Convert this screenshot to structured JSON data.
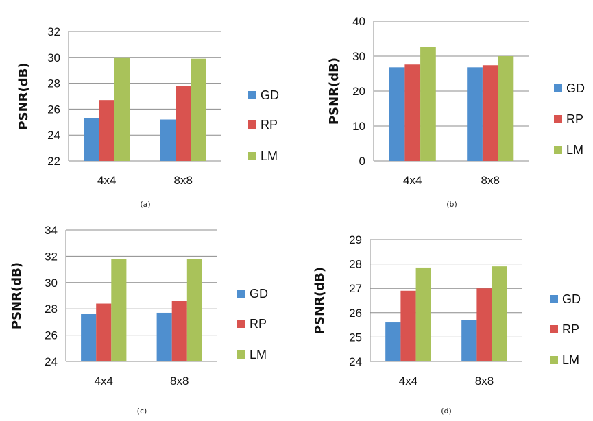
{
  "colors": {
    "GD": "#4f8fcf",
    "RP": "#d9534f",
    "LM": "#a9c25a"
  },
  "chart_data": [
    {
      "type": "bar",
      "caption": "(a)",
      "categories": [
        "4x4",
        "8x8"
      ],
      "series": [
        {
          "name": "GD",
          "values": [
            25.3,
            25.2
          ]
        },
        {
          "name": "RP",
          "values": [
            26.7,
            27.8
          ]
        },
        {
          "name": "LM",
          "values": [
            30.0,
            29.9
          ]
        }
      ],
      "ylabel": "PSNR(dB)",
      "ylim": [
        22,
        32
      ],
      "yticks": [
        22,
        24,
        26,
        28,
        30,
        32
      ],
      "grid": true,
      "legend": "right"
    },
    {
      "type": "bar",
      "caption": "(b)",
      "categories": [
        "4x4",
        "8x8"
      ],
      "series": [
        {
          "name": "GD",
          "values": [
            26.8,
            26.8
          ]
        },
        {
          "name": "RP",
          "values": [
            27.6,
            27.4
          ]
        },
        {
          "name": "LM",
          "values": [
            32.7,
            30.0
          ]
        }
      ],
      "ylabel": "PSNR(dB)",
      "ylim": [
        0,
        40
      ],
      "yticks": [
        0,
        10,
        20,
        30,
        40
      ],
      "grid": true,
      "legend": "right"
    },
    {
      "type": "bar",
      "caption": "(c)",
      "categories": [
        "4x4",
        "8x8"
      ],
      "series": [
        {
          "name": "GD",
          "values": [
            27.6,
            27.7
          ]
        },
        {
          "name": "RP",
          "values": [
            28.4,
            28.6
          ]
        },
        {
          "name": "LM",
          "values": [
            31.8,
            31.8
          ]
        }
      ],
      "ylabel": "PSNR(dB)",
      "ylim": [
        24,
        34
      ],
      "yticks": [
        24,
        26,
        28,
        30,
        32,
        34
      ],
      "grid": true,
      "legend": "right"
    },
    {
      "type": "bar",
      "caption": "(d)",
      "categories": [
        "4x4",
        "8x8"
      ],
      "series": [
        {
          "name": "GD",
          "values": [
            25.6,
            25.7
          ]
        },
        {
          "name": "RP",
          "values": [
            26.9,
            27.0
          ]
        },
        {
          "name": "LM",
          "values": [
            27.85,
            27.9
          ]
        }
      ],
      "ylabel": "PSNR(dB)",
      "ylim": [
        24,
        29
      ],
      "yticks": [
        24,
        25,
        26,
        27,
        28,
        29
      ],
      "grid": true,
      "legend": "right"
    }
  ]
}
